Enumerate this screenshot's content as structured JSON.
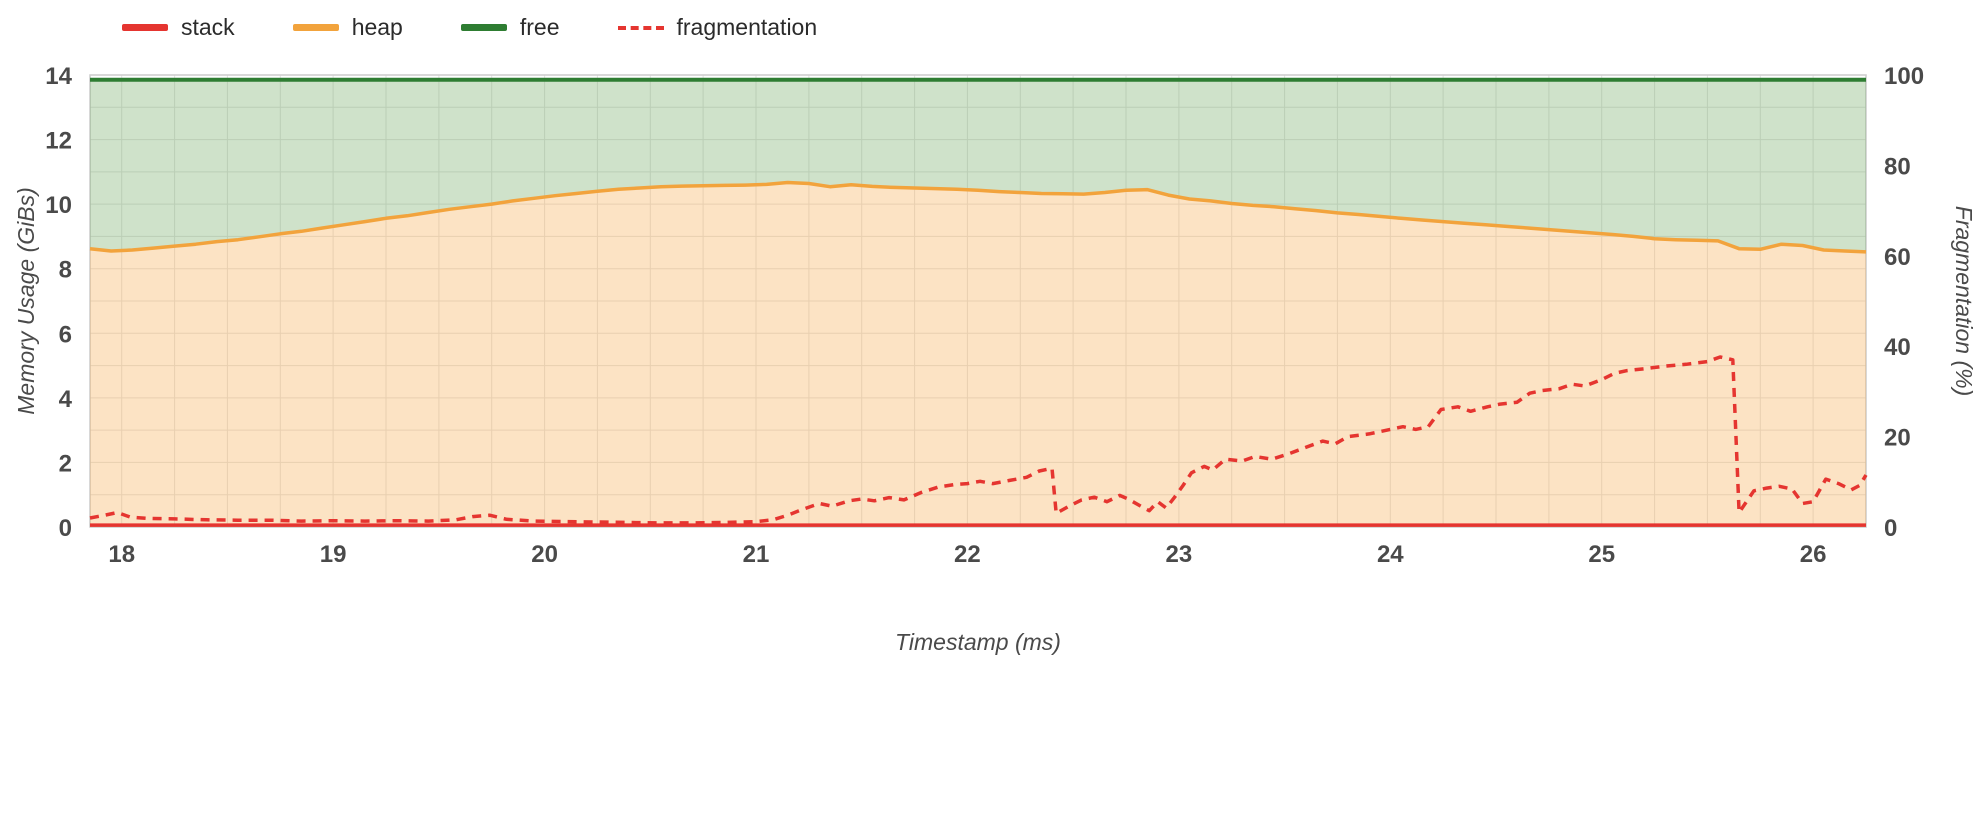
{
  "chart_data": {
    "type": "area",
    "title": "",
    "xlabel": "Timestamp (ms)",
    "ylabel_left": "Memory Usage (GiBs)",
    "ylabel_right": "Fragmentation (%)",
    "x_range": [
      17.85,
      26.25
    ],
    "x_ticks": [
      18,
      19,
      20,
      21,
      22,
      23,
      24,
      25,
      26
    ],
    "y_left_range": [
      0,
      14
    ],
    "y_left_ticks": [
      0,
      2,
      4,
      6,
      8,
      10,
      12,
      14
    ],
    "y_right_range": [
      0,
      100
    ],
    "y_right_ticks": [
      0,
      20,
      40,
      60,
      80,
      100
    ],
    "grid": true,
    "legend_position": "top-left",
    "colors": {
      "stack": "#e53530",
      "heap": "#f2a33c",
      "heap_fill": "rgba(246,163,60,0.30)",
      "free": "#2e7d32",
      "free_fill": "rgba(96,160,80,0.30)",
      "fragmentation": "#e53530",
      "grid": "#e3e3e3",
      "frame": "#cccccc"
    },
    "legend": [
      {
        "label": "stack",
        "color": "#e53530",
        "style": "solid"
      },
      {
        "label": "heap",
        "color": "#f2a33c",
        "style": "solid"
      },
      {
        "label": "free",
        "color": "#2e7d32",
        "style": "solid"
      },
      {
        "label": "fragmentation",
        "color": "#e53530",
        "style": "dashed"
      }
    ],
    "series": {
      "total_gib": 13.85,
      "stack_gib": 0.06,
      "heap": {
        "x": [
          17.85,
          17.95,
          18.05,
          18.15,
          18.25,
          18.35,
          18.45,
          18.55,
          18.65,
          18.75,
          18.85,
          18.95,
          19.05,
          19.15,
          19.25,
          19.35,
          19.45,
          19.55,
          19.65,
          19.75,
          19.85,
          19.95,
          20.05,
          20.15,
          20.25,
          20.35,
          20.45,
          20.55,
          20.65,
          20.75,
          20.85,
          20.95,
          21.05,
          21.15,
          21.25,
          21.35,
          21.45,
          21.55,
          21.65,
          21.75,
          21.85,
          21.95,
          22.05,
          22.15,
          22.25,
          22.35,
          22.45,
          22.55,
          22.65,
          22.75,
          22.85,
          22.95,
          23.05,
          23.15,
          23.25,
          23.35,
          23.45,
          23.55,
          23.65,
          23.75,
          23.85,
          23.95,
          24.05,
          24.15,
          24.25,
          24.35,
          24.45,
          24.55,
          24.65,
          24.75,
          24.85,
          24.95,
          25.05,
          25.15,
          25.25,
          25.35,
          25.45,
          25.55,
          25.65,
          25.75,
          25.85,
          25.95,
          26.05,
          26.15,
          26.25
        ],
        "y": [
          8.62,
          8.55,
          8.58,
          8.64,
          8.7,
          8.76,
          8.84,
          8.9,
          8.99,
          9.08,
          9.16,
          9.26,
          9.36,
          9.46,
          9.56,
          9.64,
          9.74,
          9.84,
          9.92,
          10.0,
          10.1,
          10.18,
          10.26,
          10.33,
          10.4,
          10.46,
          10.5,
          10.54,
          10.56,
          10.57,
          10.58,
          10.59,
          10.61,
          10.67,
          10.64,
          10.54,
          10.6,
          10.55,
          10.52,
          10.5,
          10.48,
          10.46,
          10.43,
          10.39,
          10.36,
          10.33,
          10.32,
          10.31,
          10.36,
          10.43,
          10.45,
          10.28,
          10.16,
          10.1,
          10.02,
          9.96,
          9.92,
          9.86,
          9.8,
          9.73,
          9.68,
          9.62,
          9.56,
          9.51,
          9.46,
          9.41,
          9.36,
          9.31,
          9.26,
          9.21,
          9.16,
          9.11,
          9.06,
          9.0,
          8.93,
          8.9,
          8.88,
          8.86,
          8.62,
          8.6,
          8.76,
          8.72,
          8.58,
          8.55,
          8.52
        ]
      },
      "fragmentation_pct": {
        "x": [
          17.85,
          17.92,
          17.98,
          18.04,
          18.12,
          18.25,
          18.4,
          18.55,
          18.7,
          18.85,
          19.0,
          19.15,
          19.3,
          19.45,
          19.58,
          19.66,
          19.74,
          19.82,
          19.95,
          20.1,
          20.25,
          20.4,
          20.55,
          20.7,
          20.85,
          21.0,
          21.08,
          21.15,
          21.22,
          21.3,
          21.36,
          21.44,
          21.5,
          21.56,
          21.63,
          21.7,
          21.78,
          21.86,
          21.94,
          22.0,
          22.06,
          22.12,
          22.2,
          22.28,
          22.34,
          22.4,
          22.42,
          22.48,
          22.54,
          22.6,
          22.66,
          22.72,
          22.76,
          22.82,
          22.86,
          22.9,
          22.94,
          22.98,
          23.02,
          23.06,
          23.12,
          23.16,
          23.22,
          23.3,
          23.36,
          23.44,
          23.52,
          23.6,
          23.68,
          23.74,
          23.8,
          23.9,
          24.0,
          24.06,
          24.12,
          24.18,
          24.24,
          24.32,
          24.38,
          24.46,
          24.52,
          24.6,
          24.66,
          24.72,
          24.8,
          24.86,
          24.92,
          25.0,
          25.06,
          25.12,
          25.2,
          25.3,
          25.4,
          25.5,
          25.56,
          25.62,
          25.65,
          25.72,
          25.78,
          25.84,
          25.9,
          25.95,
          26.0,
          26.06,
          26.12,
          26.18,
          26.22,
          26.25
        ],
        "y": [
          2.0,
          2.6,
          3.2,
          2.2,
          1.9,
          1.8,
          1.6,
          1.5,
          1.5,
          1.3,
          1.4,
          1.3,
          1.4,
          1.3,
          1.6,
          2.3,
          2.6,
          1.7,
          1.3,
          1.2,
          1.1,
          1.0,
          0.9,
          0.9,
          1.0,
          1.2,
          1.6,
          2.6,
          3.9,
          5.2,
          4.6,
          5.8,
          6.2,
          5.8,
          6.5,
          6.0,
          7.6,
          8.8,
          9.4,
          9.6,
          10.1,
          9.6,
          10.3,
          11.0,
          12.4,
          13.0,
          3.0,
          4.6,
          6.0,
          6.6,
          5.6,
          7.0,
          6.2,
          4.6,
          3.6,
          5.6,
          4.2,
          6.6,
          9.2,
          12.0,
          13.4,
          12.6,
          15.0,
          14.6,
          15.6,
          15.0,
          16.2,
          17.6,
          19.0,
          18.4,
          20.0,
          20.6,
          21.6,
          22.2,
          21.6,
          22.2,
          26.0,
          26.6,
          25.6,
          26.6,
          27.2,
          27.6,
          29.6,
          30.2,
          30.6,
          31.6,
          31.2,
          32.6,
          34.0,
          34.6,
          35.0,
          35.6,
          36.0,
          36.6,
          37.6,
          37.0,
          3.2,
          8.0,
          8.6,
          9.0,
          8.4,
          5.2,
          5.6,
          10.6,
          9.6,
          8.2,
          9.2,
          11.5
        ]
      }
    }
  }
}
